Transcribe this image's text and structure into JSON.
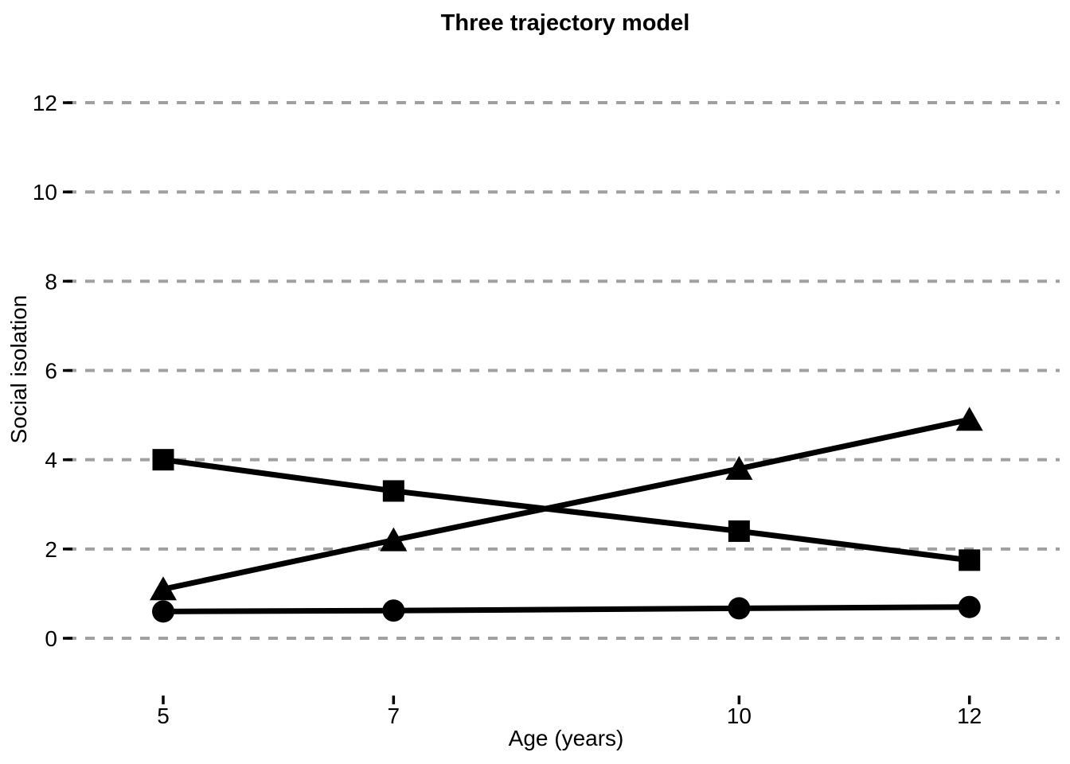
{
  "chart_data": {
    "type": "line",
    "title": "Three trajectory model",
    "xlabel": "Age (years)",
    "ylabel": "Social isolation",
    "x": [
      5,
      7,
      10,
      12
    ],
    "x_tick_labels": [
      "5",
      "7",
      "10",
      "12"
    ],
    "y_ticks": [
      0,
      2,
      4,
      6,
      8,
      10,
      12
    ],
    "y_tick_labels": [
      "0",
      "2",
      "4",
      "6",
      "8",
      "10",
      "12"
    ],
    "xlim": [
      4.2,
      12.8
    ],
    "ylim": [
      -1.3,
      13.1
    ],
    "grid": {
      "horizontal": true,
      "vertical": false,
      "style": "dashed",
      "color": "#a0a0a0"
    },
    "legend_position": "none",
    "series": [
      {
        "name": "square-trajectory-decreasing",
        "marker": "square",
        "color": "#000000",
        "values": [
          4.0,
          3.3,
          2.4,
          1.75
        ]
      },
      {
        "name": "triangle-trajectory-increasing",
        "marker": "triangle",
        "color": "#000000",
        "values": [
          1.1,
          2.2,
          3.8,
          4.9
        ]
      },
      {
        "name": "circle-trajectory-stable-low",
        "marker": "circle",
        "color": "#000000",
        "values": [
          0.6,
          0.62,
          0.67,
          0.7
        ]
      }
    ],
    "colors": {
      "foreground": "#000000",
      "background": "#ffffff"
    }
  }
}
